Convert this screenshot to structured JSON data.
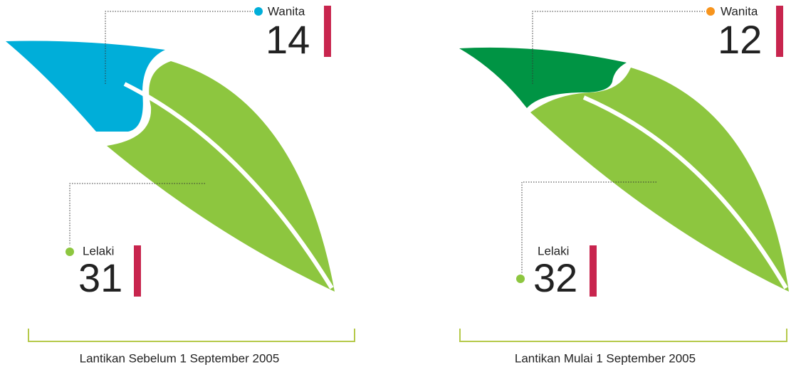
{
  "panels": [
    {
      "female": {
        "label": "Wanita",
        "value": 14
      },
      "male": {
        "label": "Lelaki",
        "value": 31
      },
      "caption": "Lantikan Sebelum 1 September 2005"
    },
    {
      "female": {
        "label": "Wanita",
        "value": 12
      },
      "male": {
        "label": "Lelaki",
        "value": 32
      },
      "caption": "Lantikan Mulai 1 September 2005"
    }
  ]
}
